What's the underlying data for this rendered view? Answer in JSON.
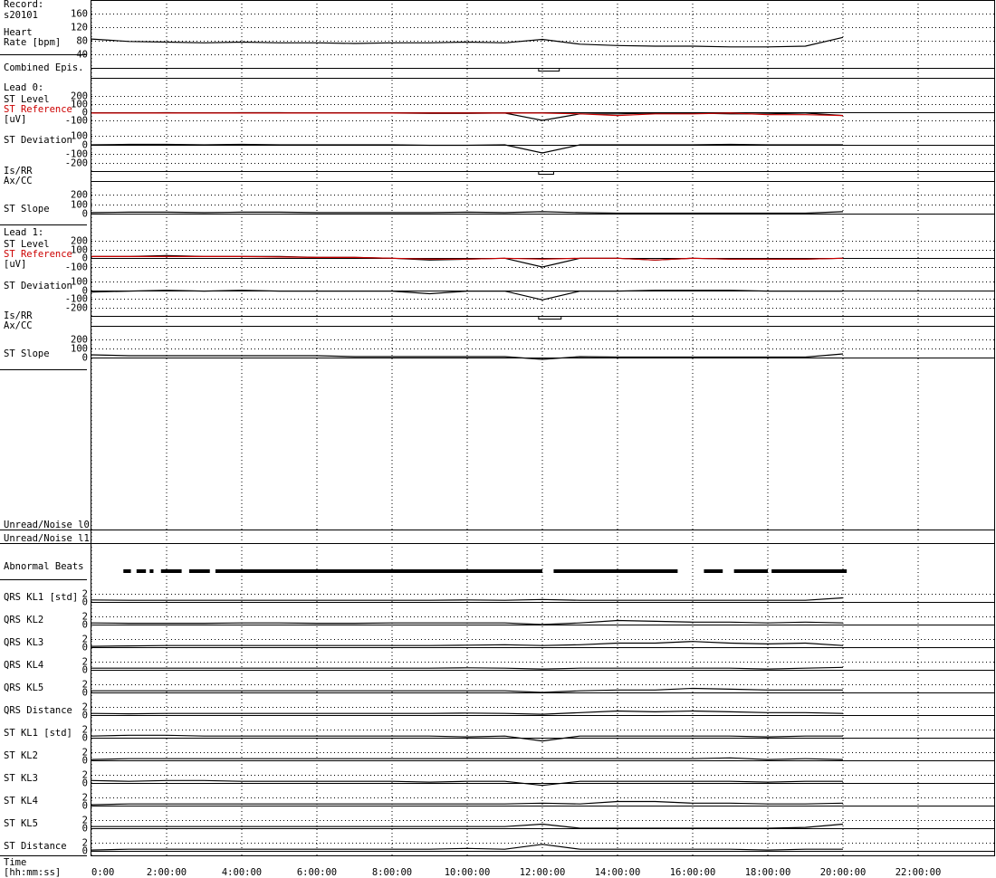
{
  "x": [
    0,
    1,
    2,
    3,
    4,
    5,
    6,
    7,
    8,
    9,
    10,
    11,
    12,
    13,
    14,
    15,
    16,
    17,
    18,
    19,
    20
  ],
  "xaxis": {
    "labels": [
      "Time",
      "[hh:mm:ss]"
    ],
    "xlim": [
      0,
      24
    ],
    "xticks": [
      {
        "value": 0,
        "label": "0:00"
      },
      {
        "value": 2,
        "label": "2:00:00"
      },
      {
        "value": 4,
        "label": "4:00:00"
      },
      {
        "value": 6,
        "label": "6:00:00"
      },
      {
        "value": 8,
        "label": "8:00:00"
      },
      {
        "value": 10,
        "label": "10:00:00"
      },
      {
        "value": 12,
        "label": "12:00:00"
      },
      {
        "value": 14,
        "label": "14:00:00"
      },
      {
        "value": 16,
        "label": "16:00:00"
      },
      {
        "value": 18,
        "label": "18:00:00"
      },
      {
        "value": 20,
        "label": "20:00:00"
      },
      {
        "value": 22,
        "label": "22:00:00"
      }
    ]
  },
  "panels": [
    {
      "type": "trace",
      "labels": [
        {
          "text": "Record:"
        },
        {
          "text": "s20101"
        },
        {
          "text": "Heart"
        },
        {
          "text": "Rate [bpm]"
        }
      ],
      "ylim": [
        40,
        160
      ],
      "yticks": [
        40,
        80,
        120,
        160
      ],
      "series": [
        {
          "color": "#000000",
          "values": [
            85,
            78,
            76,
            74,
            76,
            74,
            74,
            72,
            74,
            74,
            76,
            74,
            84,
            70,
            66,
            64,
            64,
            62,
            62,
            64,
            90
          ]
        }
      ]
    },
    {
      "type": "band",
      "style": "box",
      "labels": [
        {
          "text": "Combined Epis."
        }
      ],
      "episodes": [
        [
          11.9,
          12.45
        ]
      ]
    },
    {
      "type": "trace",
      "labels": [
        {
          "text": "Lead 0:"
        },
        {
          "text": "ST Level"
        },
        {
          "text": "ST Reference",
          "color": "#cc0000"
        },
        {
          "text": "[uV]"
        }
      ],
      "ylim": [
        -100,
        200
      ],
      "yticks": [
        -100,
        0,
        100,
        200
      ],
      "series": [
        {
          "color": "#000000",
          "values": [
            -10,
            -10,
            -5,
            -10,
            -5,
            -5,
            -10,
            -10,
            -10,
            -15,
            -15,
            -10,
            -100,
            -20,
            -20,
            -10,
            -10,
            -20,
            -20,
            -10,
            -40
          ]
        },
        {
          "color": "#cc0000",
          "values": [
            -10,
            -10,
            -10,
            -10,
            -10,
            -10,
            -10,
            -10,
            -10,
            -10,
            -10,
            -10,
            -10,
            -20,
            -40,
            -20,
            -20,
            -10,
            -30,
            -30,
            -40
          ]
        }
      ]
    },
    {
      "type": "trace",
      "labels": [
        {
          "text": "ST Deviation"
        }
      ],
      "ylim": [
        -200,
        100
      ],
      "yticks": [
        -200,
        -100,
        0,
        100
      ],
      "series": [
        {
          "color": "#000000",
          "values": [
            0,
            5,
            5,
            0,
            5,
            0,
            0,
            0,
            0,
            -5,
            -5,
            0,
            -90,
            0,
            0,
            0,
            0,
            5,
            0,
            0,
            0
          ]
        }
      ]
    },
    {
      "type": "band",
      "style": "box",
      "labels": [
        {
          "text": "Is/RR"
        },
        {
          "text": "Ax/CC"
        }
      ],
      "episodes": [
        [
          11.9,
          12.3
        ]
      ]
    },
    {
      "type": "trace",
      "labels": [
        {
          "text": "ST Slope"
        }
      ],
      "ylim": [
        0,
        200
      ],
      "yticks": [
        0,
        100,
        200
      ],
      "series": [
        {
          "color": "#000000",
          "values": [
            10,
            15,
            15,
            10,
            15,
            15,
            10,
            10,
            10,
            10,
            15,
            10,
            20,
            10,
            5,
            5,
            5,
            5,
            5,
            5,
            20
          ]
        }
      ]
    },
    {
      "type": "trace",
      "labels": [
        {
          "text": "Lead 1:"
        },
        {
          "text": "ST Level"
        },
        {
          "text": "ST Reference",
          "color": "#cc0000"
        },
        {
          "text": "[uV]"
        }
      ],
      "ylim": [
        -100,
        200
      ],
      "yticks": [
        -100,
        0,
        100,
        200
      ],
      "series": [
        {
          "color": "#000000",
          "values": [
            20,
            20,
            30,
            20,
            20,
            20,
            10,
            10,
            0,
            -20,
            -10,
            0,
            -100,
            0,
            0,
            -20,
            0,
            -10,
            -10,
            -10,
            0
          ]
        },
        {
          "color": "#cc0000",
          "values": [
            20,
            20,
            20,
            20,
            20,
            15,
            10,
            10,
            0,
            -10,
            -10,
            0,
            -10,
            0,
            0,
            -20,
            0,
            -10,
            -10,
            -10,
            0
          ]
        }
      ]
    },
    {
      "type": "trace",
      "labels": [
        {
          "text": "ST Deviation"
        }
      ],
      "ylim": [
        -200,
        100
      ],
      "yticks": [
        -200,
        -100,
        0,
        100
      ],
      "series": [
        {
          "color": "#000000",
          "values": [
            -20,
            -10,
            0,
            -10,
            0,
            -10,
            -10,
            -10,
            -10,
            -40,
            -10,
            -10,
            -110,
            -10,
            -10,
            0,
            0,
            0,
            -10,
            -10,
            -10
          ]
        }
      ]
    },
    {
      "type": "band",
      "style": "box",
      "labels": [
        {
          "text": "Is/RR"
        },
        {
          "text": "Ax/CC"
        }
      ],
      "episodes": [
        [
          11.9,
          12.5
        ]
      ]
    },
    {
      "type": "trace",
      "labels": [
        {
          "text": "ST Slope"
        }
      ],
      "ylim": [
        0,
        200
      ],
      "yticks": [
        0,
        100,
        200
      ],
      "series": [
        {
          "color": "#000000",
          "values": [
            30,
            20,
            20,
            20,
            20,
            20,
            20,
            10,
            10,
            10,
            10,
            10,
            -20,
            10,
            5,
            5,
            5,
            5,
            5,
            5,
            40
          ]
        }
      ]
    },
    {
      "type": "band",
      "style": "box",
      "labels": [
        {
          "text": "Unread/Noise l0"
        }
      ],
      "episodes": []
    },
    {
      "type": "band",
      "style": "box",
      "labels": [
        {
          "text": "Unread/Noise l1"
        }
      ],
      "episodes": []
    },
    {
      "type": "band",
      "style": "bar",
      "labels": [
        {
          "text": "Abnormal Beats"
        }
      ],
      "episodes": [
        [
          0.85,
          1.05
        ],
        [
          1.2,
          1.45
        ],
        [
          1.55,
          1.65
        ],
        [
          1.85,
          2.4
        ],
        [
          2.6,
          3.15
        ],
        [
          3.3,
          12.0
        ],
        [
          12.3,
          15.6
        ],
        [
          16.3,
          16.8
        ],
        [
          17.1,
          18.0
        ],
        [
          18.1,
          20.1
        ]
      ]
    },
    {
      "type": "trace",
      "labels": [
        {
          "text": "QRS KL1 [std]"
        }
      ],
      "ylim": [
        0,
        2
      ],
      "yticks": [
        0,
        2
      ],
      "series": [
        {
          "color": "#000000",
          "values": [
            0.5,
            0.4,
            0.4,
            0.4,
            0.4,
            0.4,
            0.4,
            0.4,
            0.4,
            0.4,
            0.5,
            0.4,
            0.6,
            0.4,
            0.4,
            0.4,
            0.4,
            0.4,
            0.4,
            0.4,
            1.0
          ]
        }
      ]
    },
    {
      "type": "trace",
      "labels": [
        {
          "text": "QRS KL2"
        }
      ],
      "ylim": [
        0,
        2
      ],
      "yticks": [
        0,
        2
      ],
      "series": [
        {
          "color": "#000000",
          "values": [
            0.4,
            0.3,
            0.3,
            0.3,
            0.4,
            0.4,
            0.3,
            0.3,
            0.4,
            0.4,
            0.4,
            0.4,
            0.0,
            0.4,
            1.0,
            0.8,
            0.6,
            0.6,
            0.4,
            0.6,
            0.4
          ]
        }
      ]
    },
    {
      "type": "trace",
      "labels": [
        {
          "text": "QRS KL3"
        }
      ],
      "ylim": [
        0,
        2
      ],
      "yticks": [
        0,
        2
      ],
      "series": [
        {
          "color": "#000000",
          "values": [
            0.2,
            0.3,
            0.4,
            0.4,
            0.4,
            0.4,
            0.4,
            0.4,
            0.4,
            0.4,
            0.5,
            0.6,
            0.4,
            0.6,
            1.0,
            1.0,
            1.4,
            1.0,
            0.8,
            1.0,
            0.4
          ]
        }
      ]
    },
    {
      "type": "trace",
      "labels": [
        {
          "text": "QRS KL4"
        }
      ],
      "ylim": [
        0,
        2
      ],
      "yticks": [
        0,
        2
      ],
      "series": [
        {
          "color": "#000000",
          "values": [
            0.4,
            0.4,
            0.4,
            0.4,
            0.4,
            0.4,
            0.4,
            0.4,
            0.4,
            0.4,
            0.5,
            0.4,
            0.2,
            0.4,
            0.4,
            0.4,
            0.4,
            0.4,
            0.2,
            0.4,
            0.6
          ]
        }
      ]
    },
    {
      "type": "trace",
      "labels": [
        {
          "text": "QRS KL5"
        }
      ],
      "ylim": [
        0,
        2
      ],
      "yticks": [
        0,
        2
      ],
      "series": [
        {
          "color": "#000000",
          "values": [
            0.4,
            0.4,
            0.4,
            0.4,
            0.4,
            0.4,
            0.4,
            0.4,
            0.4,
            0.4,
            0.4,
            0.4,
            0.0,
            0.4,
            0.6,
            0.6,
            1.0,
            0.8,
            0.6,
            0.6,
            0.6
          ]
        }
      ]
    },
    {
      "type": "trace",
      "labels": [
        {
          "text": "QRS Distance"
        }
      ],
      "ylim": [
        0,
        2
      ],
      "yticks": [
        0,
        2
      ],
      "series": [
        {
          "color": "#000000",
          "values": [
            0.4,
            0.3,
            0.4,
            0.4,
            0.4,
            0.4,
            0.4,
            0.4,
            0.4,
            0.4,
            0.5,
            0.4,
            0.2,
            0.6,
            1.0,
            0.8,
            1.0,
            0.8,
            0.6,
            0.6,
            0.4
          ]
        }
      ]
    },
    {
      "type": "trace",
      "labels": [
        {
          "text": "ST KL1 [std]"
        }
      ],
      "ylim": [
        0,
        2
      ],
      "yticks": [
        0,
        2
      ],
      "series": [
        {
          "color": "#000000",
          "values": [
            0.4,
            0.6,
            0.6,
            0.4,
            0.4,
            0.4,
            0.4,
            0.4,
            0.4,
            0.4,
            0.2,
            0.4,
            -0.8,
            0.4,
            0.4,
            0.4,
            0.4,
            0.4,
            0.2,
            0.4,
            0.4
          ]
        }
      ]
    },
    {
      "type": "trace",
      "labels": [
        {
          "text": "ST KL2"
        }
      ],
      "ylim": [
        0,
        2
      ],
      "yticks": [
        0,
        2
      ],
      "series": [
        {
          "color": "#000000",
          "values": [
            0.2,
            0.4,
            0.4,
            0.4,
            0.4,
            0.4,
            0.4,
            0.4,
            0.4,
            0.4,
            0.4,
            0.4,
            0.4,
            0.4,
            0.4,
            0.4,
            0.4,
            0.6,
            0.2,
            0.4,
            0.2
          ]
        }
      ]
    },
    {
      "type": "trace",
      "labels": [
        {
          "text": "ST KL3"
        }
      ],
      "ylim": [
        0,
        2
      ],
      "yticks": [
        0,
        2
      ],
      "series": [
        {
          "color": "#000000",
          "values": [
            0.6,
            0.4,
            0.6,
            0.6,
            0.4,
            0.4,
            0.4,
            0.4,
            0.4,
            0.2,
            0.4,
            0.4,
            -0.6,
            0.4,
            0.4,
            0.4,
            0.4,
            0.4,
            0.2,
            0.4,
            0.4
          ]
        }
      ]
    },
    {
      "type": "trace",
      "labels": [
        {
          "text": "ST KL4"
        }
      ],
      "ylim": [
        0,
        2
      ],
      "yticks": [
        0,
        2
      ],
      "series": [
        {
          "color": "#000000",
          "values": [
            0.2,
            0.4,
            0.4,
            0.4,
            0.4,
            0.4,
            0.4,
            0.4,
            0.4,
            0.4,
            0.4,
            0.4,
            0.6,
            0.4,
            1.0,
            1.0,
            0.6,
            0.6,
            0.4,
            0.4,
            0.6
          ]
        }
      ]
    },
    {
      "type": "trace",
      "labels": [
        {
          "text": "ST KL5"
        }
      ],
      "ylim": [
        0,
        2
      ],
      "yticks": [
        0,
        2
      ],
      "series": [
        {
          "color": "#000000",
          "values": [
            0.4,
            0.4,
            0.4,
            0.4,
            0.4,
            0.4,
            0.4,
            0.4,
            0.4,
            0.4,
            0.4,
            0.4,
            1.0,
            0.0,
            0.0,
            0.0,
            0.0,
            0.0,
            0.0,
            0.2,
            1.0
          ]
        }
      ]
    },
    {
      "type": "trace",
      "labels": [
        {
          "text": "ST Distance"
        }
      ],
      "ylim": [
        0,
        2
      ],
      "yticks": [
        0,
        2
      ],
      "series": [
        {
          "color": "#000000",
          "values": [
            0.2,
            0.4,
            0.4,
            0.4,
            0.4,
            0.4,
            0.4,
            0.4,
            0.4,
            0.4,
            0.6,
            0.4,
            1.6,
            0.4,
            0.4,
            0.4,
            0.4,
            0.4,
            0.2,
            0.4,
            0.4
          ]
        }
      ]
    }
  ]
}
